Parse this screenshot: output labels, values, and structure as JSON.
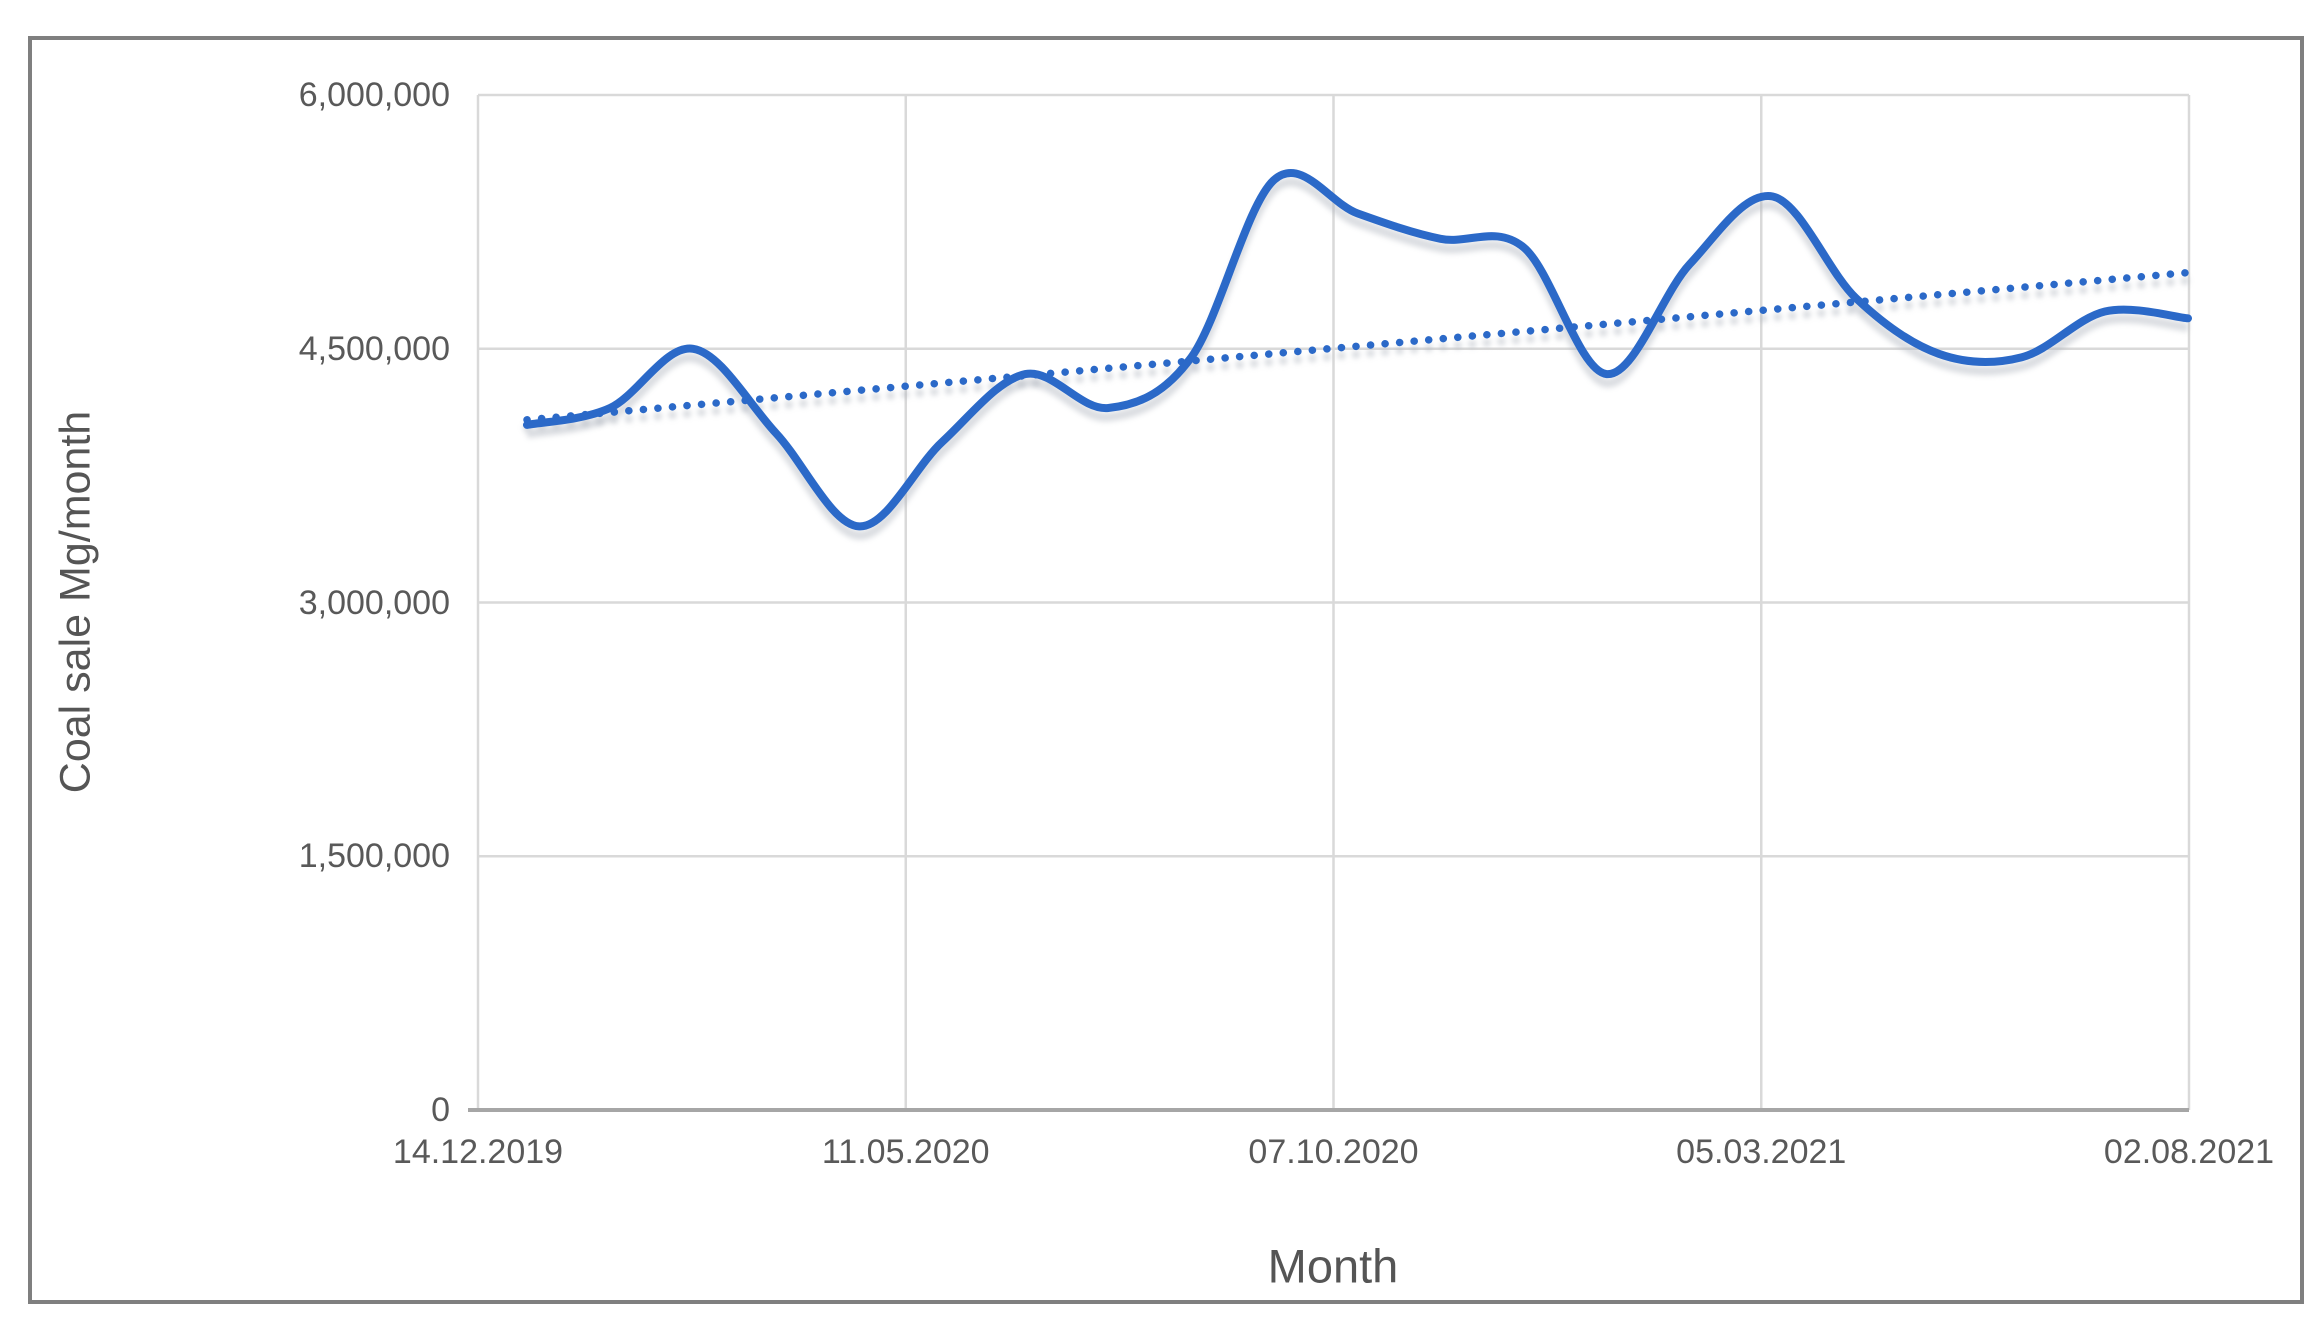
{
  "chart_data": {
    "type": "line",
    "title": "",
    "xlabel": "Month",
    "ylabel": "Coal sale Mg/month",
    "x_tick_labels": [
      "14.12.2019",
      "11.05.2020",
      "07.10.2020",
      "05.03.2021",
      "02.08.2021"
    ],
    "y_tick_labels": [
      "0",
      "1,500,000",
      "3,000,000",
      "4,500,000",
      "6,000,000"
    ],
    "ylim": [
      0,
      6000000
    ],
    "grid": true,
    "legend": "none",
    "colors": {
      "series_blue": "#2b69c8",
      "gridline": "#d9d9d9",
      "axis_line": "#a6a6a6",
      "tick_text": "#595959",
      "frame_border": "#7f7f7f",
      "shadow": "#aeb4bd"
    },
    "series": [
      {
        "name": "coal-sale",
        "style": "solid-smooth",
        "values": [
          4050000,
          4150000,
          4500000,
          4000000,
          3450000,
          3950000,
          4350000,
          4150000,
          4450000,
          5500000,
          5300000,
          5150000,
          5100000,
          4350000,
          5000000,
          5400000,
          4800000,
          4470000,
          4450000,
          4720000,
          4680000
        ]
      },
      {
        "name": "linear-trend",
        "style": "dotted",
        "values": [
          4080000,
          4950000
        ]
      }
    ]
  }
}
